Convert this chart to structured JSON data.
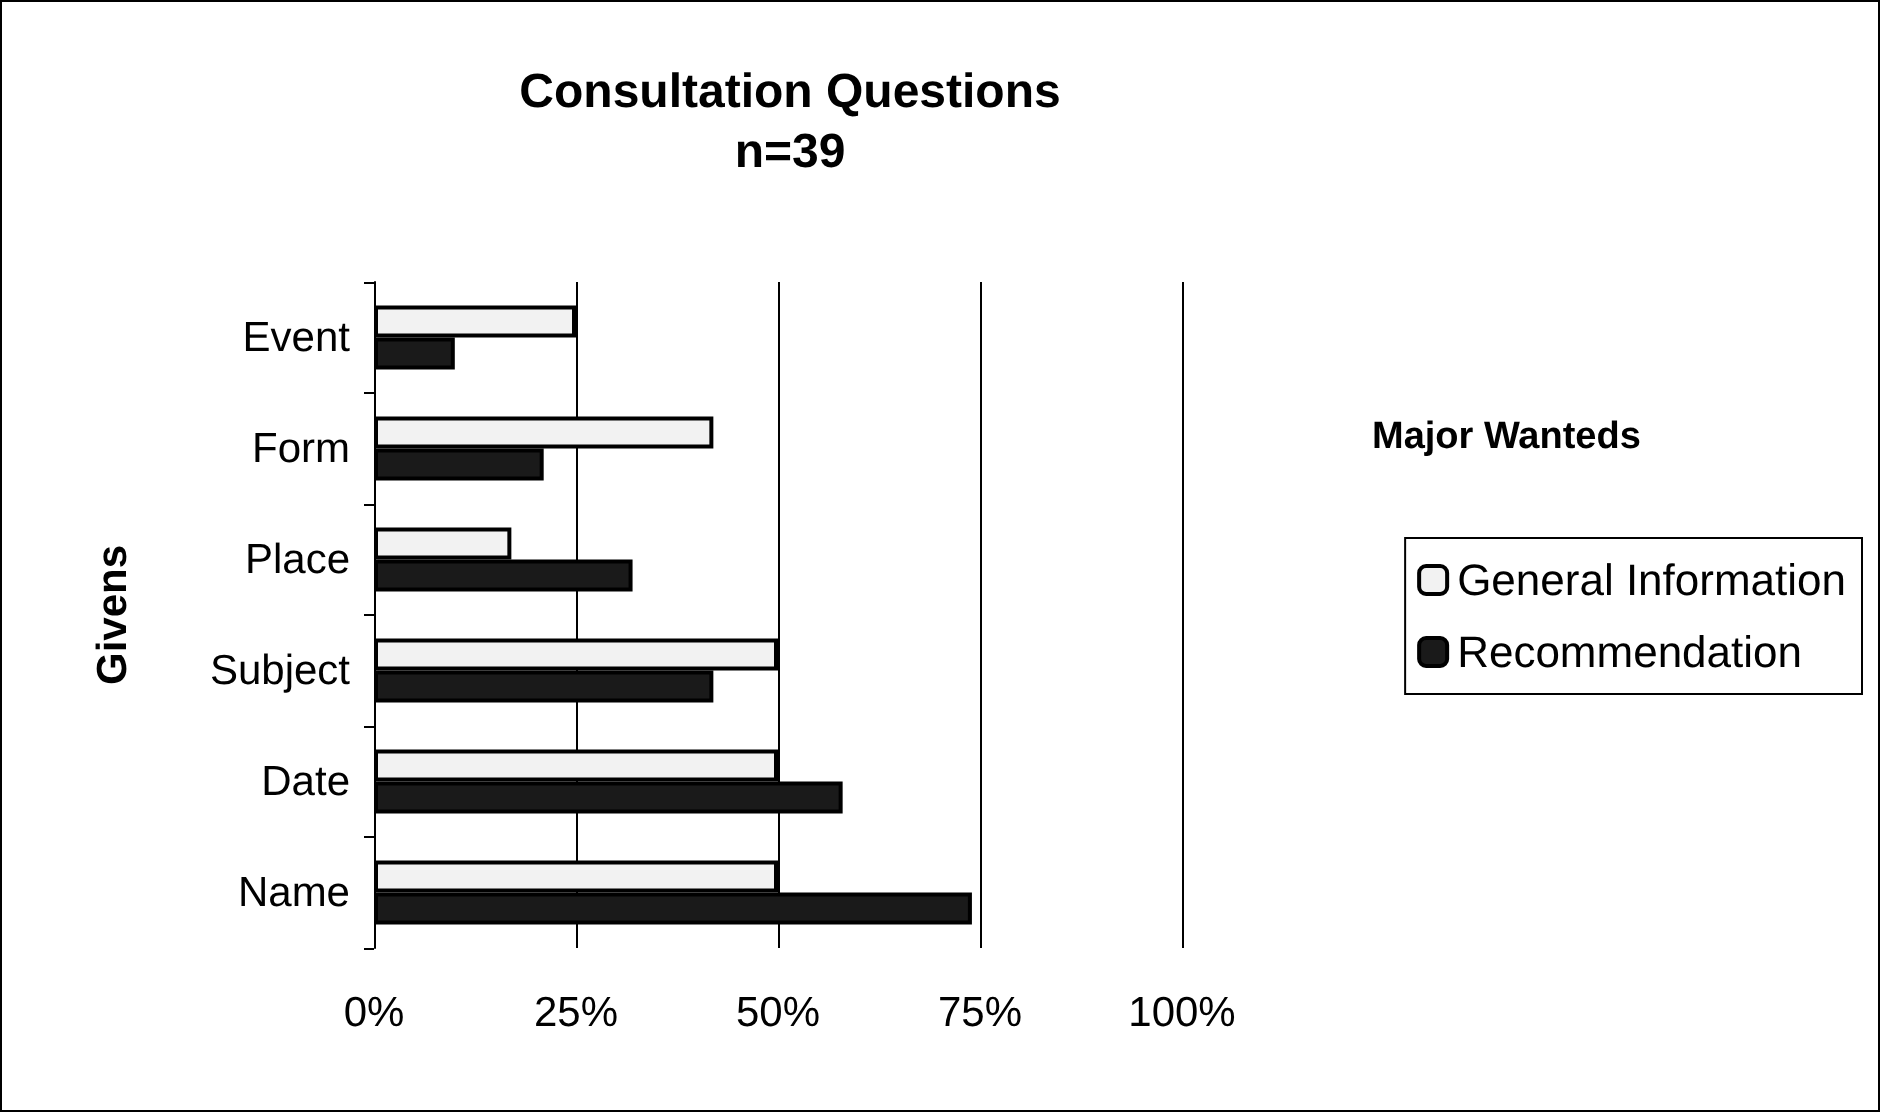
{
  "chart_data": {
    "type": "bar",
    "orientation": "horizontal",
    "title": "Consultation Questions",
    "subtitle": "n=39",
    "ylabel": "Givens",
    "legend_title": "Major Wanteds",
    "categories": [
      "Event",
      "Form",
      "Place",
      "Subject",
      "Date",
      "Name"
    ],
    "series": [
      {
        "name": "General Information",
        "color": "#f2f2f2",
        "values": [
          25,
          42,
          17,
          50,
          50,
          50
        ]
      },
      {
        "name": "Recommendation",
        "color": "#1a1a1a",
        "values": [
          10,
          21,
          32,
          42,
          58,
          74
        ]
      }
    ],
    "xlim": [
      0,
      100
    ],
    "xticks": [
      {
        "value": 0,
        "label": "0%"
      },
      {
        "value": 25,
        "label": "25%"
      },
      {
        "value": 50,
        "label": "50%"
      },
      {
        "value": 75,
        "label": "75%"
      },
      {
        "value": 100,
        "label": "100%"
      }
    ],
    "grid": "x",
    "legend": "right"
  }
}
